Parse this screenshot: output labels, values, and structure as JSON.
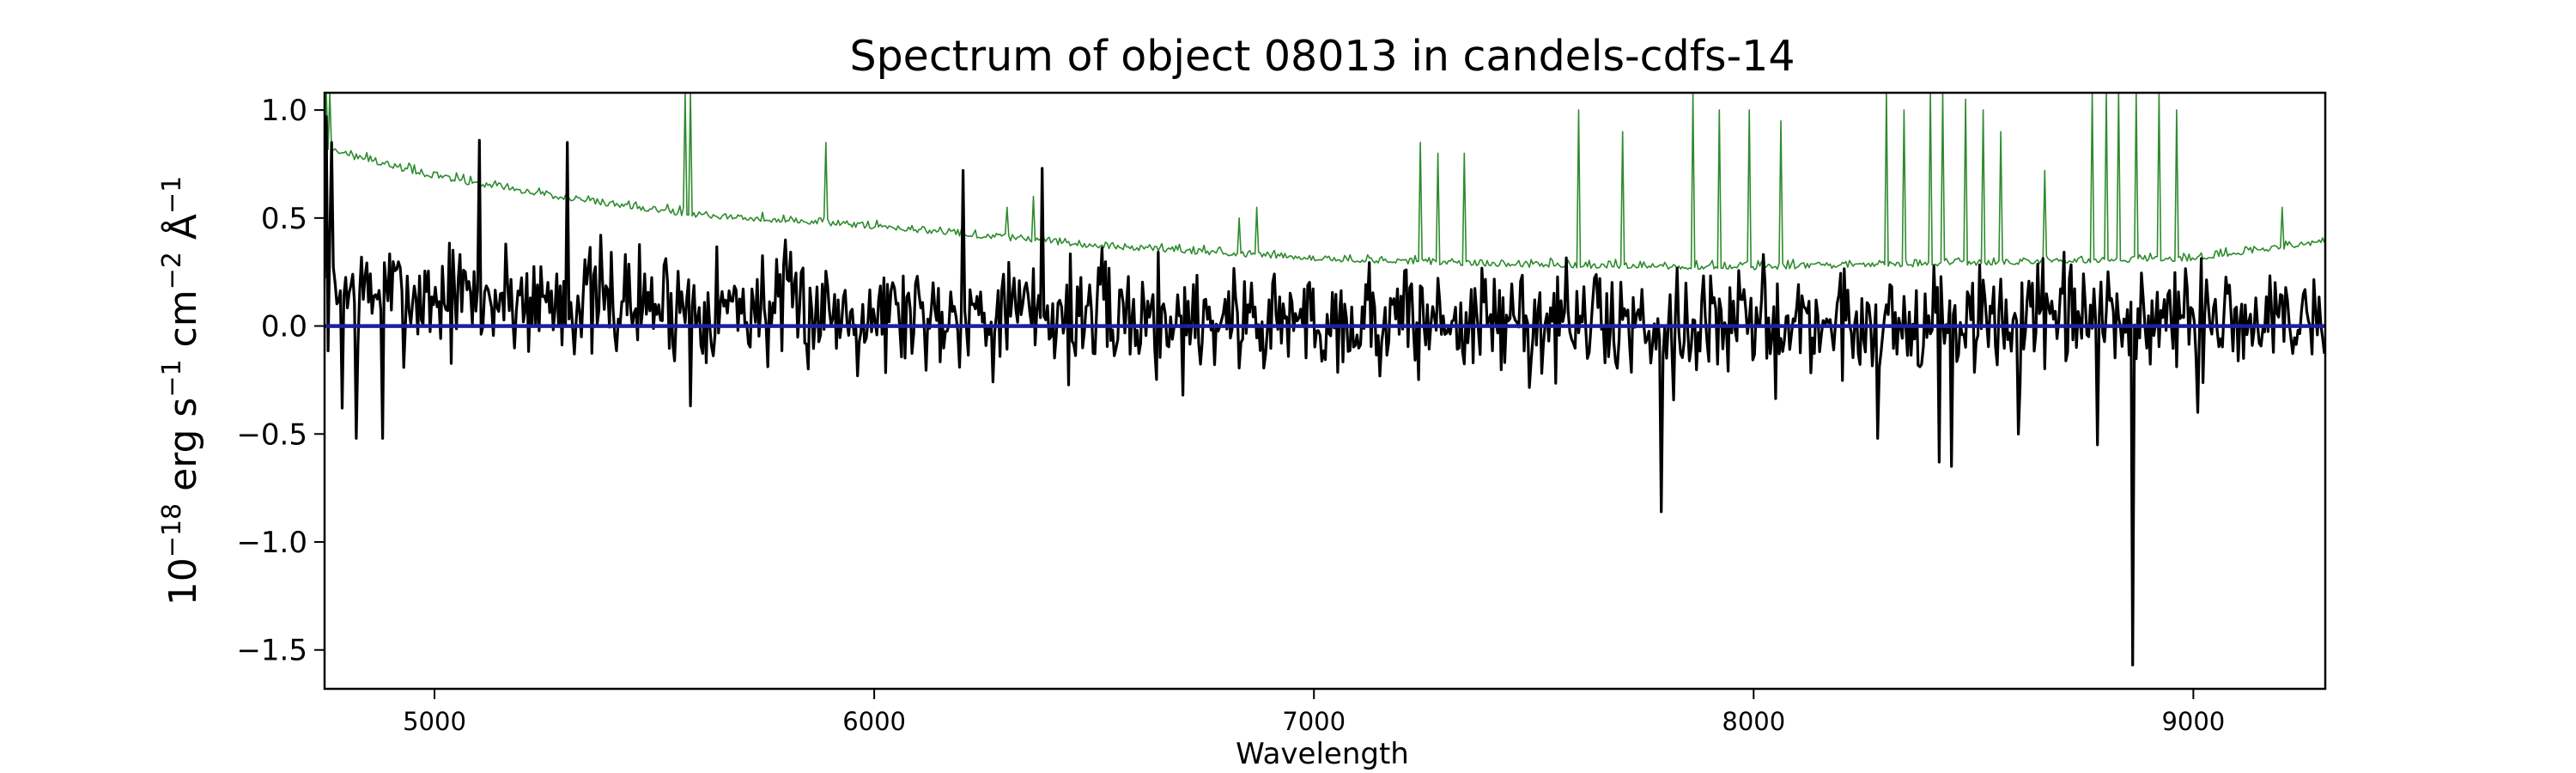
{
  "chart_data": {
    "type": "line",
    "title": "Spectrum of object 08013 in candels-cdfs-14",
    "xlabel": "Wavelength",
    "ylabel": {
      "base": "10",
      "base_exp": "−18",
      "u1": "erg s",
      "u1_exp": "−1",
      "u2": "cm",
      "u2_exp": "−2",
      "u3": "Å",
      "u3_exp": "−1"
    },
    "xlim": [
      4750,
      9300
    ],
    "ylim": [
      -1.68,
      1.08
    ],
    "xticks": [
      5000,
      6000,
      7000,
      8000,
      9000
    ],
    "yticks": [
      1.0,
      0.5,
      0.0,
      -0.5,
      -1.0,
      -1.5
    ],
    "ytick_labels": [
      "1.0",
      "0.5",
      "0.0",
      "−0.5",
      "−1.0",
      "−1.5"
    ],
    "grid": false,
    "series": [
      {
        "role": "flux",
        "color": "#000000",
        "seed": 7,
        "noise_amp": 0.13,
        "trend": [
          [
            4750,
            0.15
          ],
          [
            5300,
            0.12
          ],
          [
            6000,
            0.07
          ],
          [
            7000,
            0.03
          ],
          [
            8000,
            0.01
          ],
          [
            9300,
            0.03
          ]
        ],
        "features": [
          [
            4752,
            0.97
          ],
          [
            4765,
            0.85
          ],
          [
            4790,
            -0.38
          ],
          [
            4820,
            -0.52
          ],
          [
            4880,
            -0.52
          ],
          [
            5100,
            0.86
          ],
          [
            5300,
            0.85
          ],
          [
            5580,
            -0.37
          ],
          [
            6200,
            0.72
          ],
          [
            6380,
            0.73
          ],
          [
            6700,
            -0.32
          ],
          [
            7790,
            -0.86
          ],
          [
            8280,
            -0.52
          ],
          [
            8420,
            -0.63
          ],
          [
            8450,
            -0.65
          ],
          [
            8600,
            -0.5
          ],
          [
            8780,
            -0.55
          ],
          [
            8862,
            -1.57
          ],
          [
            9010,
            -0.4
          ]
        ]
      },
      {
        "role": "noise",
        "color": "#2e8b2e",
        "seed": 13,
        "noise_amp": 0.03,
        "trend": [
          [
            4750,
            0.82
          ],
          [
            4800,
            0.78
          ],
          [
            5000,
            0.68
          ],
          [
            5300,
            0.58
          ],
          [
            5600,
            0.5
          ],
          [
            6000,
            0.45
          ],
          [
            6500,
            0.36
          ],
          [
            7000,
            0.3
          ],
          [
            7500,
            0.27
          ],
          [
            8000,
            0.26
          ],
          [
            8500,
            0.28
          ],
          [
            9000,
            0.3
          ],
          [
            9300,
            0.38
          ]
        ],
        "features": [
          [
            4755,
            1.08
          ],
          [
            4760,
            1.08
          ],
          [
            5570,
            1.08
          ],
          [
            5580,
            1.08
          ],
          [
            5890,
            0.85
          ],
          [
            6300,
            0.55
          ],
          [
            6360,
            0.6
          ],
          [
            6830,
            0.5
          ],
          [
            6870,
            0.55
          ],
          [
            7240,
            0.85
          ],
          [
            7280,
            0.8
          ],
          [
            7340,
            0.8
          ],
          [
            7600,
            1.0
          ],
          [
            7700,
            0.9
          ],
          [
            7860,
            1.08
          ],
          [
            7920,
            1.0
          ],
          [
            7990,
            1.0
          ],
          [
            8060,
            0.95
          ],
          [
            8300,
            1.08
          ],
          [
            8340,
            1.0
          ],
          [
            8400,
            1.08
          ],
          [
            8430,
            1.08
          ],
          [
            8480,
            1.05
          ],
          [
            8520,
            1.0
          ],
          [
            8560,
            0.9
          ],
          [
            8660,
            0.72
          ],
          [
            8770,
            1.08
          ],
          [
            8800,
            1.08
          ],
          [
            8830,
            1.08
          ],
          [
            8870,
            1.08
          ],
          [
            8920,
            1.08
          ],
          [
            8960,
            1.0
          ],
          [
            9200,
            0.55
          ]
        ]
      },
      {
        "role": "model",
        "color": "#1f1f9e",
        "values": [
          [
            4750,
            0.0
          ],
          [
            9300,
            0.0
          ]
        ]
      }
    ]
  }
}
